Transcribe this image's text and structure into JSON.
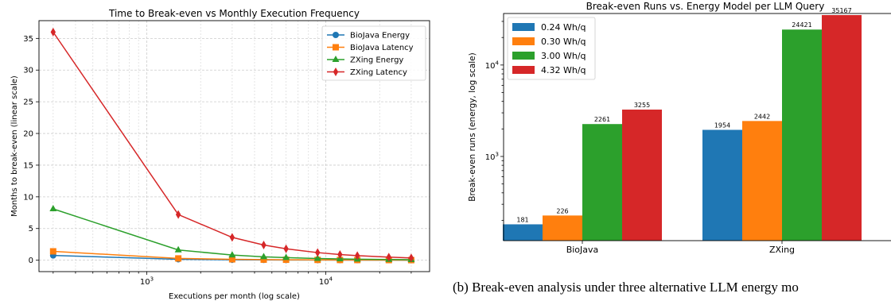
{
  "caption": "(b) Break-even analysis under three alternative LLM energy mo",
  "chart_data": [
    {
      "type": "line",
      "title": "Time to Break-even vs Monthly Execution Frequency",
      "xlabel": "Executions per month (log scale)",
      "ylabel": "Months to break-even (linear scale)",
      "xscale": "log",
      "xlim": [
        250,
        38000
      ],
      "ylim": [
        -1.8,
        37.8
      ],
      "yticks": [
        0,
        5,
        10,
        15,
        20,
        25,
        30,
        35
      ],
      "xticks": [
        {
          "value": 1000,
          "label": "10^3"
        },
        {
          "value": 10000,
          "label": "10^4"
        }
      ],
      "grid": true,
      "legend_position": "top-right",
      "series": [
        {
          "name": "BioJava Energy",
          "color": "#1f77b4",
          "marker": "circle",
          "x": [
            300,
            1500,
            3000,
            4500,
            6000,
            9000,
            12000,
            15000,
            22500,
            30000
          ],
          "y": [
            0.75,
            0.15,
            0.07,
            0.05,
            0.04,
            0.03,
            0.02,
            0.015,
            0.01,
            0.008
          ]
        },
        {
          "name": "BioJava Latency",
          "color": "#ff7f0e",
          "marker": "square",
          "x": [
            300,
            1500,
            3000,
            4500,
            6000,
            9000,
            12000,
            15000,
            22500,
            30000
          ],
          "y": [
            1.4,
            0.28,
            0.14,
            0.09,
            0.07,
            0.05,
            0.035,
            0.028,
            0.019,
            0.014
          ]
        },
        {
          "name": "ZXing Energy",
          "color": "#2ca02c",
          "marker": "triangle",
          "x": [
            300,
            1500,
            3000,
            4500,
            6000,
            9000,
            12000,
            15000,
            22500,
            30000
          ],
          "y": [
            8.1,
            1.62,
            0.81,
            0.54,
            0.41,
            0.27,
            0.2,
            0.16,
            0.11,
            0.08
          ]
        },
        {
          "name": "ZXing Latency",
          "color": "#d62728",
          "marker": "diamond",
          "x": [
            300,
            1500,
            3000,
            4500,
            6000,
            9000,
            12000,
            15000,
            22500,
            30000
          ],
          "y": [
            36.0,
            7.2,
            3.6,
            2.4,
            1.8,
            1.2,
            0.9,
            0.72,
            0.48,
            0.36
          ]
        }
      ]
    },
    {
      "type": "bar",
      "title": "Break-even Runs vs. Energy Model per LLM Query",
      "xlabel": "",
      "ylabel": "Break-even runs (energy, log scale)",
      "yscale": "log",
      "ylim": [
        120,
        36600
      ],
      "yticks": [
        {
          "value": 1000,
          "label": "10^3"
        },
        {
          "value": 10000,
          "label": "10^4"
        }
      ],
      "grid": false,
      "legend_position": "top-left",
      "categories": [
        "BioJava",
        "ZXing"
      ],
      "series": [
        {
          "name": "0.24 Wh/q",
          "color": "#1f77b4",
          "values": [
            181,
            1954
          ]
        },
        {
          "name": "0.30 Wh/q",
          "color": "#ff7f0e",
          "values": [
            226,
            2442
          ]
        },
        {
          "name": "3.00 Wh/q",
          "color": "#2ca02c",
          "values": [
            2261,
            24421
          ]
        },
        {
          "name": "4.32 Wh/q",
          "color": "#d62728",
          "values": [
            3255,
            35167
          ]
        }
      ]
    }
  ]
}
